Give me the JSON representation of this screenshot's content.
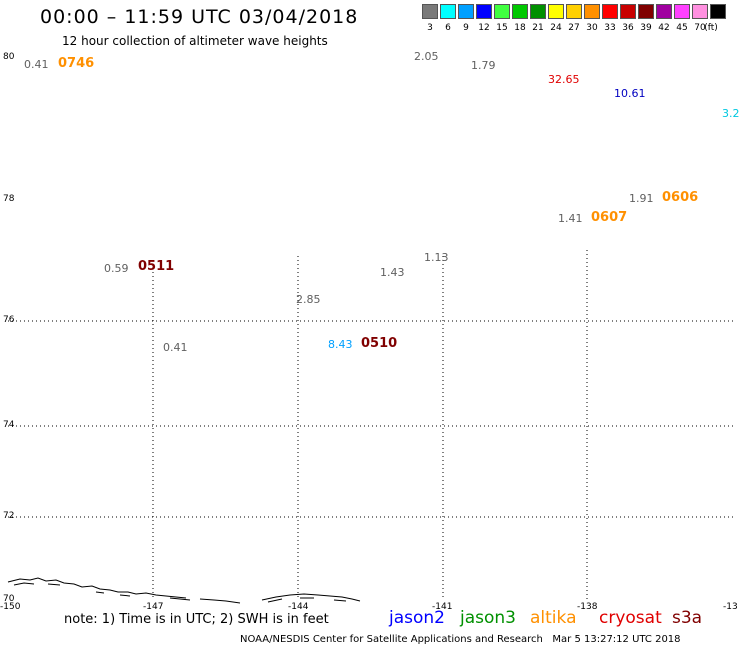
{
  "header": {
    "title": "00:00 – 11:59 UTC 03/04/2018",
    "subtitle": "12 hour collection of altimeter wave heights"
  },
  "legend": {
    "unit": "(ft)",
    "items": [
      {
        "label": "3",
        "color": "#7a7a7a"
      },
      {
        "label": "6",
        "color": "#00ffff"
      },
      {
        "label": "9",
        "color": "#00a0ff"
      },
      {
        "label": "12",
        "color": "#0000ff"
      },
      {
        "label": "15",
        "color": "#40ff40"
      },
      {
        "label": "18",
        "color": "#00c800"
      },
      {
        "label": "21",
        "color": "#009000"
      },
      {
        "label": "24",
        "color": "#ffff00"
      },
      {
        "label": "27",
        "color": "#ffd000"
      },
      {
        "label": "30",
        "color": "#ff9000"
      },
      {
        "label": "33",
        "color": "#ff0000"
      },
      {
        "label": "36",
        "color": "#c80000"
      },
      {
        "label": "39",
        "color": "#800000"
      },
      {
        "label": "42",
        "color": "#a000a0"
      },
      {
        "label": "45",
        "color": "#ff40ff"
      },
      {
        "label": "70",
        "color": "#ff90e0"
      },
      {
        "label": "",
        "color": "#000000"
      }
    ]
  },
  "axes": {
    "lat_labels": [
      "80",
      "78",
      "76",
      "74",
      "72",
      "70"
    ],
    "lon_labels": [
      "-150",
      "-147",
      "-144",
      "-141",
      "-138",
      "-13"
    ]
  },
  "observations": [
    {
      "text": "0.41",
      "color": "#606060"
    },
    {
      "text": "0746",
      "color": "#ff9000"
    },
    {
      "text": "2.05",
      "color": "#606060"
    },
    {
      "text": "1.79",
      "color": "#606060"
    },
    {
      "text": "32.65",
      "color": "#e00000"
    },
    {
      "text": "10.61",
      "color": "#0000c0"
    },
    {
      "text": "3.2",
      "color": "#00c8e0"
    },
    {
      "text": "1.91",
      "color": "#606060"
    },
    {
      "text": "0606",
      "color": "#ff9000"
    },
    {
      "text": "1.41",
      "color": "#606060"
    },
    {
      "text": "0607",
      "color": "#ff9000"
    },
    {
      "text": "0.59",
      "color": "#606060"
    },
    {
      "text": "0511",
      "color": "#800000"
    },
    {
      "text": "1.13",
      "color": "#606060"
    },
    {
      "text": "1.43",
      "color": "#606060"
    },
    {
      "text": "2.85",
      "color": "#606060"
    },
    {
      "text": "0.41",
      "color": "#606060"
    },
    {
      "text": "8.43",
      "color": "#00a0ff"
    },
    {
      "text": "0510",
      "color": "#800000"
    }
  ],
  "footer": {
    "note": "note: 1) Time is in UTC; 2) SWH is in feet",
    "satellites": [
      {
        "name": "jason2",
        "color": "#0000ff"
      },
      {
        "name": "jason3",
        "color": "#009000"
      },
      {
        "name": "altika",
        "color": "#ff9000"
      },
      {
        "name": "cryosat",
        "color": "#e00000"
      },
      {
        "name": "s3a",
        "color": "#800000"
      }
    ],
    "credit": "NOAA/NESDIS Center for Satellite Applications and Research",
    "timestamp": "Mar  5 13:27:12 UTC 2018"
  }
}
